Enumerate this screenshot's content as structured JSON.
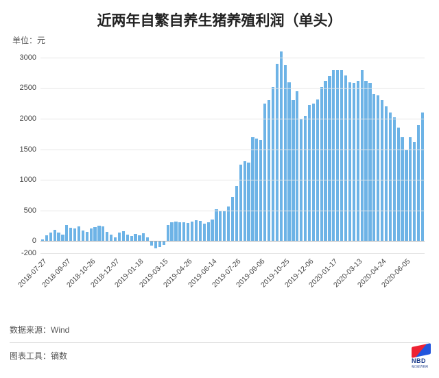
{
  "title": "近两年自繁自养生猪养殖利润（单头）",
  "unit_label": "单位：元",
  "source_label": "数据来源：Wind",
  "tool_label": "图表工具：镝数",
  "logo_text": "NBD",
  "logo_sub": "每日经济新闻",
  "chart": {
    "type": "bar",
    "background_color": "#ffffff",
    "grid_color": "#e5e5e5",
    "baseline_color": "#aaaaaa",
    "bar_color": "#6db3e6",
    "bar_width_ratio": 0.72,
    "label_color": "#444444",
    "label_fontsize": 11,
    "xlabel_fontsize": 10.5,
    "xlabel_rotation": -45,
    "title_fontsize": 21,
    "title_color": "#222222",
    "ylim": [
      -200,
      3100
    ],
    "yticks": [
      -200,
      0,
      500,
      1000,
      1500,
      2000,
      2500,
      3000
    ],
    "x_tick_labels": [
      "2018-07-27",
      "2018-09-07",
      "2018-10-26",
      "2018-12-07",
      "2019-01-18",
      "2019-03-15",
      "2019-04-26",
      "2019-06-14",
      "2019-07-26",
      "2019-09-06",
      "2019-10-25",
      "2019-12-06",
      "2020-01-17",
      "2020-03-13",
      "2020-04-24",
      "2020-06-05"
    ],
    "x_tick_positions": [
      0,
      6,
      12,
      18,
      24,
      30,
      36,
      42,
      48,
      54,
      60,
      66,
      72,
      78,
      84,
      90
    ],
    "values": [
      30,
      90,
      140,
      180,
      140,
      100,
      260,
      220,
      200,
      240,
      170,
      150,
      200,
      230,
      250,
      240,
      150,
      100,
      60,
      140,
      160,
      100,
      80,
      110,
      90,
      130,
      60,
      -80,
      -120,
      -100,
      -60,
      260,
      300,
      320,
      300,
      310,
      290,
      320,
      340,
      330,
      280,
      300,
      350,
      520,
      500,
      480,
      560,
      720,
      900,
      1250,
      1300,
      1280,
      1700,
      1680,
      1650,
      2250,
      2300,
      2520,
      2900,
      3100,
      2880,
      2600,
      2300,
      2450,
      2000,
      2050,
      2220,
      2250,
      2320,
      2520,
      2620,
      2700,
      2800,
      2800,
      2800,
      2702,
      2600,
      2580,
      2620,
      2802,
      2620,
      2580,
      2400,
      2380,
      2300,
      2200,
      2100,
      2020,
      1850,
      1700,
      1500,
      1700,
      1620,
      1900,
      2100
    ]
  }
}
